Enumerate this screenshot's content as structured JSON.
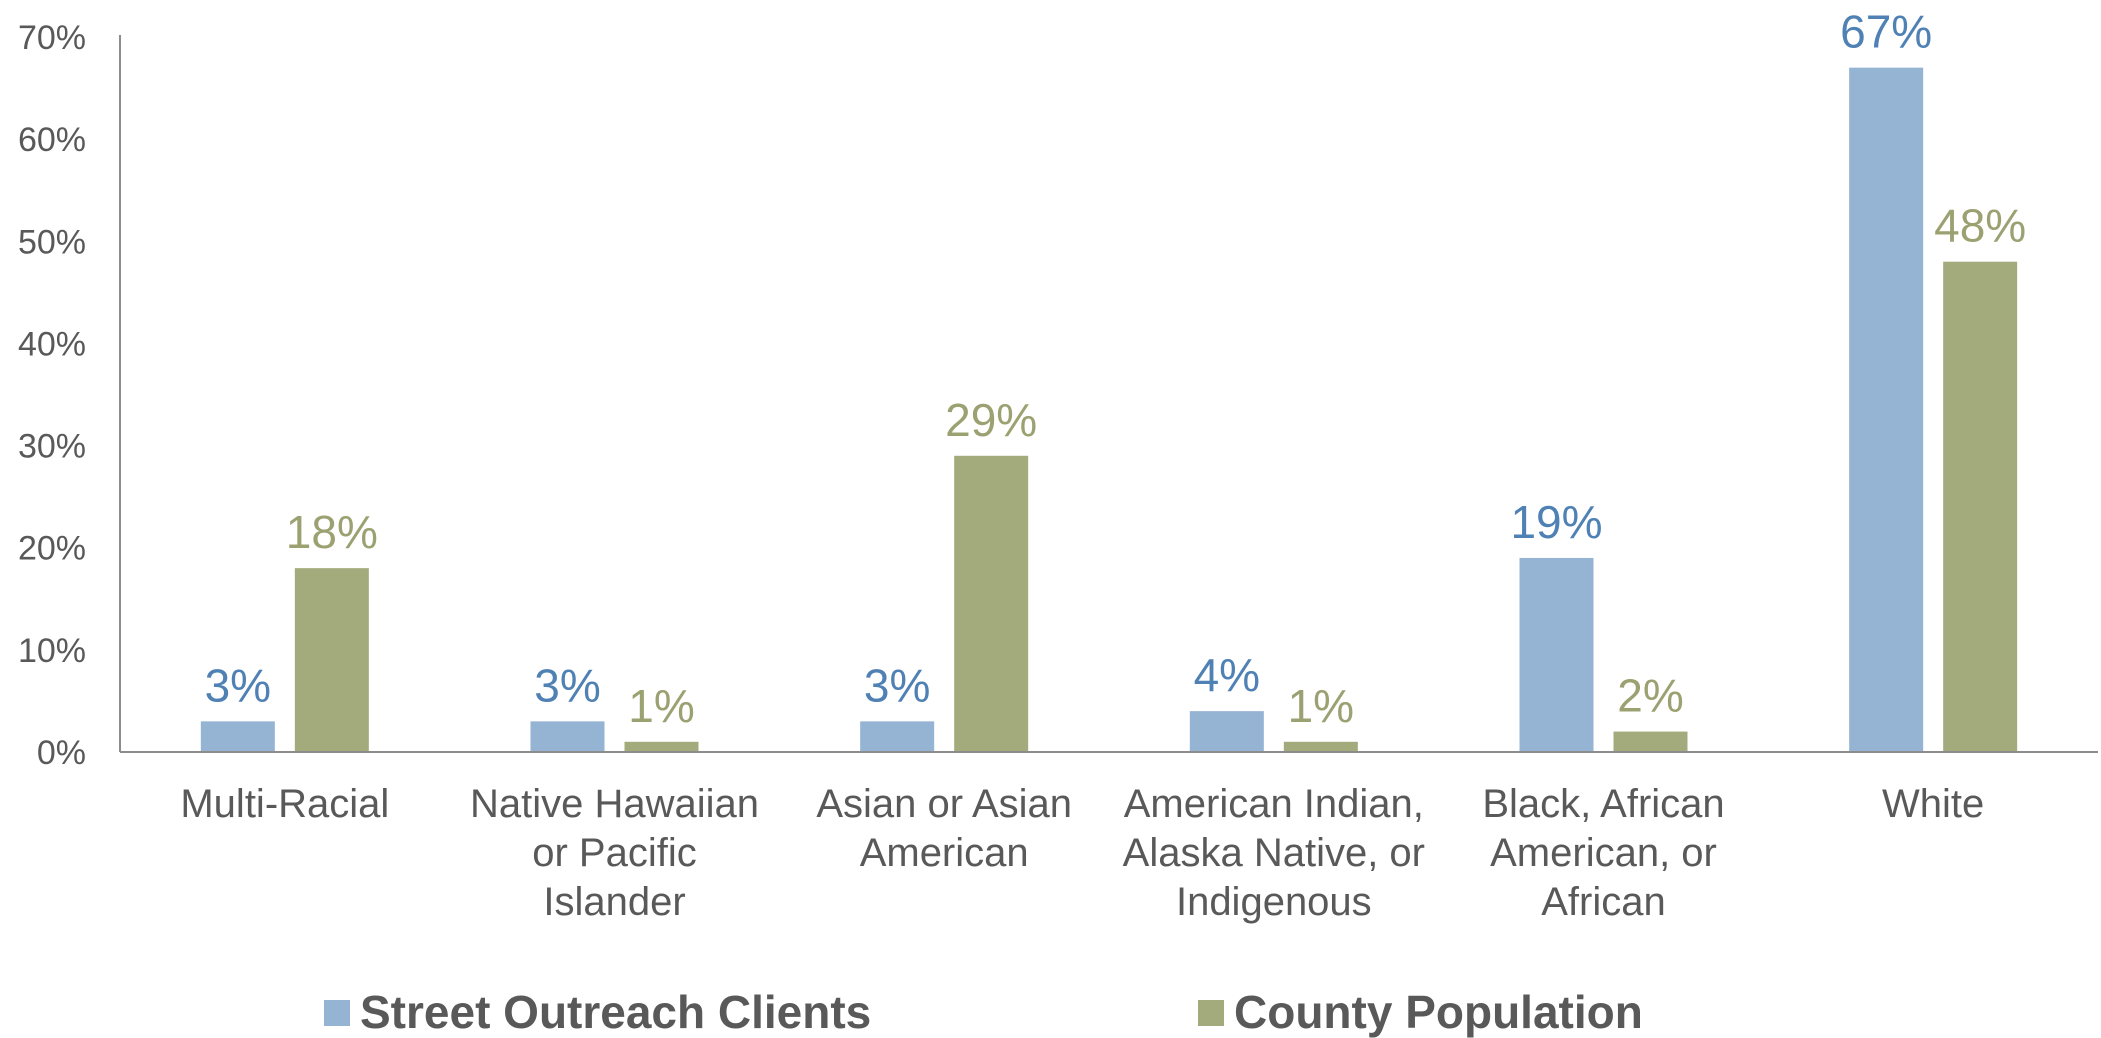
{
  "chart_data": {
    "type": "bar",
    "title": "",
    "xlabel": "",
    "ylabel": "",
    "ylim": [
      0,
      70
    ],
    "yticks": [
      "0%",
      "10%",
      "20%",
      "30%",
      "40%",
      "50%",
      "60%",
      "70%"
    ],
    "categories": [
      [
        "Multi-Racial"
      ],
      [
        "Native Hawaiian",
        "or Pacific",
        "Islander"
      ],
      [
        "Asian or Asian",
        "American"
      ],
      [
        "American Indian,",
        "Alaska Native, or",
        "Indigenous"
      ],
      [
        "Black, African",
        "American, or",
        "African"
      ],
      [
        "White"
      ]
    ],
    "series": [
      {
        "name": "Street Outreach Clients",
        "color": "#95b3d3",
        "label_color": "#4f81b4",
        "values": [
          3,
          3,
          3,
          4,
          19,
          67
        ],
        "labels": [
          "3%",
          "3%",
          "3%",
          "4%",
          "19%",
          "67%"
        ]
      },
      {
        "name": "County Population",
        "color": "#a3aa7c",
        "label_color": "#9ca171",
        "values": [
          18,
          1,
          29,
          1,
          2,
          48
        ],
        "labels": [
          "18%",
          "1%",
          "29%",
          "1%",
          "2%",
          "48%"
        ]
      }
    ],
    "grid": false,
    "legend": "bottom"
  }
}
